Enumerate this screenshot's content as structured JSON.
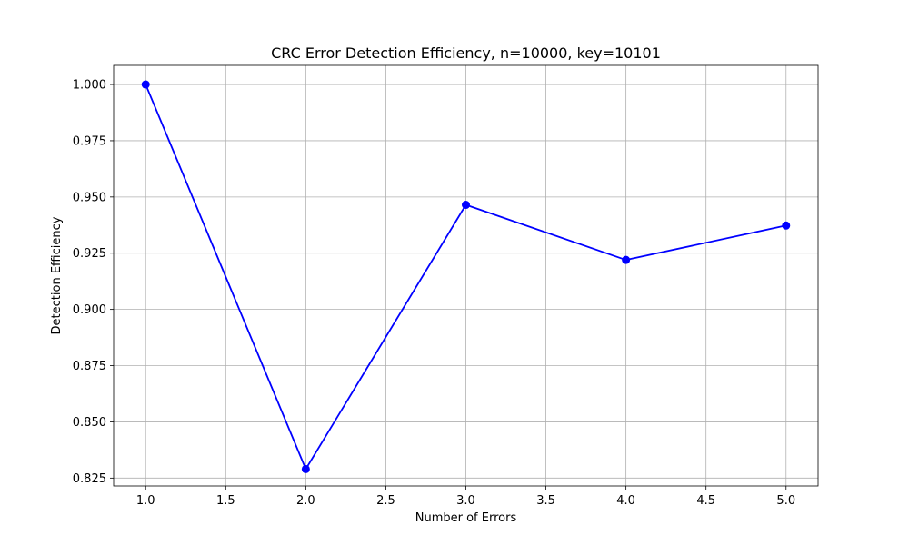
{
  "chart_data": {
    "type": "line",
    "title": "CRC Error Detection Efficiency, n=10000, key=10101",
    "xlabel": "Number of Errors",
    "ylabel": "Detection Efficiency",
    "x": [
      1.0,
      2.0,
      3.0,
      4.0,
      5.0
    ],
    "series": [
      {
        "values": [
          1.0,
          0.829,
          0.9465,
          0.922,
          0.9373
        ],
        "color": "#0000ff",
        "marker": "circle"
      }
    ],
    "xlim": [
      0.8,
      5.2
    ],
    "ylim": [
      0.8215,
      1.0085
    ],
    "xticks": [
      1.0,
      1.5,
      2.0,
      2.5,
      3.0,
      3.5,
      4.0,
      4.5,
      5.0
    ],
    "xtick_labels": [
      "1.0",
      "1.5",
      "2.0",
      "2.5",
      "3.0",
      "3.5",
      "4.0",
      "4.5",
      "5.0"
    ],
    "yticks": [
      0.825,
      0.85,
      0.875,
      0.9,
      0.925,
      0.95,
      0.975,
      1.0
    ],
    "ytick_labels": [
      "0.825",
      "0.850",
      "0.875",
      "0.900",
      "0.925",
      "0.950",
      "0.975",
      "1.000"
    ],
    "grid": true,
    "legend": false
  }
}
